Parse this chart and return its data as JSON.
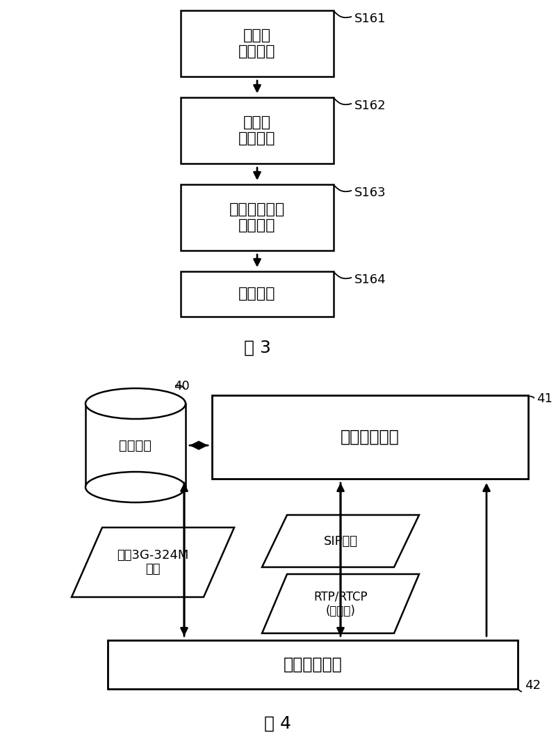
{
  "fig_width": 8.0,
  "fig_height": 10.72,
  "bg_color": "#ffffff",
  "fig3": {
    "title": "图 3",
    "boxes": [
      {
        "label": "视频流\n信号获取",
        "step": "S161"
      },
      {
        "label": "视频流\n信号存储",
        "step": "S162"
      },
      {
        "label": "与视频源文件\n进行比较",
        "step": "S163"
      },
      {
        "label": "视频质量",
        "step": "S164"
      }
    ]
  },
  "fig4": {
    "title": "图 4",
    "cylinder_label": "流媒体源",
    "cylinder_tag": "40",
    "big_box_label": "视频测试装置",
    "big_box_tag": "41",
    "bottom_box_label": "视频业务系统",
    "bottom_box_tag": "42",
    "left_para_label": "基于3G-324M\n消息",
    "sip_label": "SIP消息",
    "rtp_label": "RTP/RTCP\n(媒体流)"
  }
}
